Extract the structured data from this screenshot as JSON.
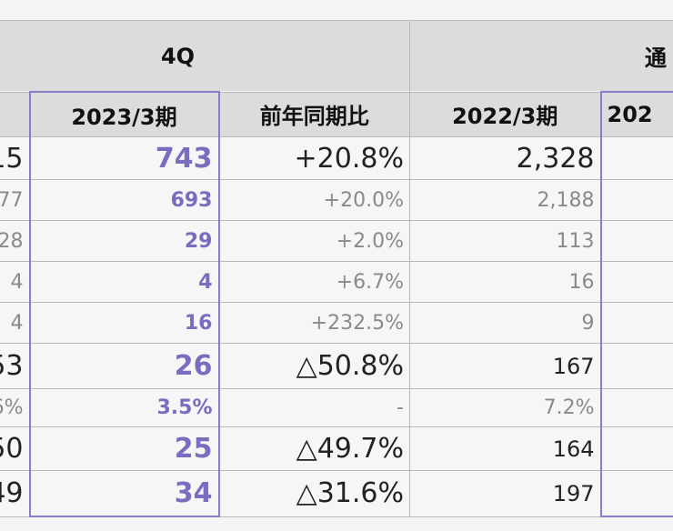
{
  "header": {
    "period_groups": [
      "4Q",
      "通"
    ],
    "columns": [
      "2023/3期",
      "前年同期比",
      "2022/3期",
      "202"
    ]
  },
  "rows": [
    [
      "15",
      "743",
      "+20.8%",
      "2,328"
    ],
    [
      "77",
      "693",
      "+20.0%",
      "2,188"
    ],
    [
      "28",
      "29",
      "+2.0%",
      "113"
    ],
    [
      "4",
      "4",
      "+6.7%",
      "16"
    ],
    [
      "4",
      "16",
      "+232.5%",
      "9"
    ],
    [
      "53",
      "26",
      "△50.8%",
      "167"
    ],
    [
      "6%",
      "3.5%",
      "-",
      "7.2%"
    ],
    [
      "50",
      "25",
      "△49.7%",
      "164"
    ],
    [
      "49",
      "34",
      "△31.6%",
      "197"
    ]
  ]
}
